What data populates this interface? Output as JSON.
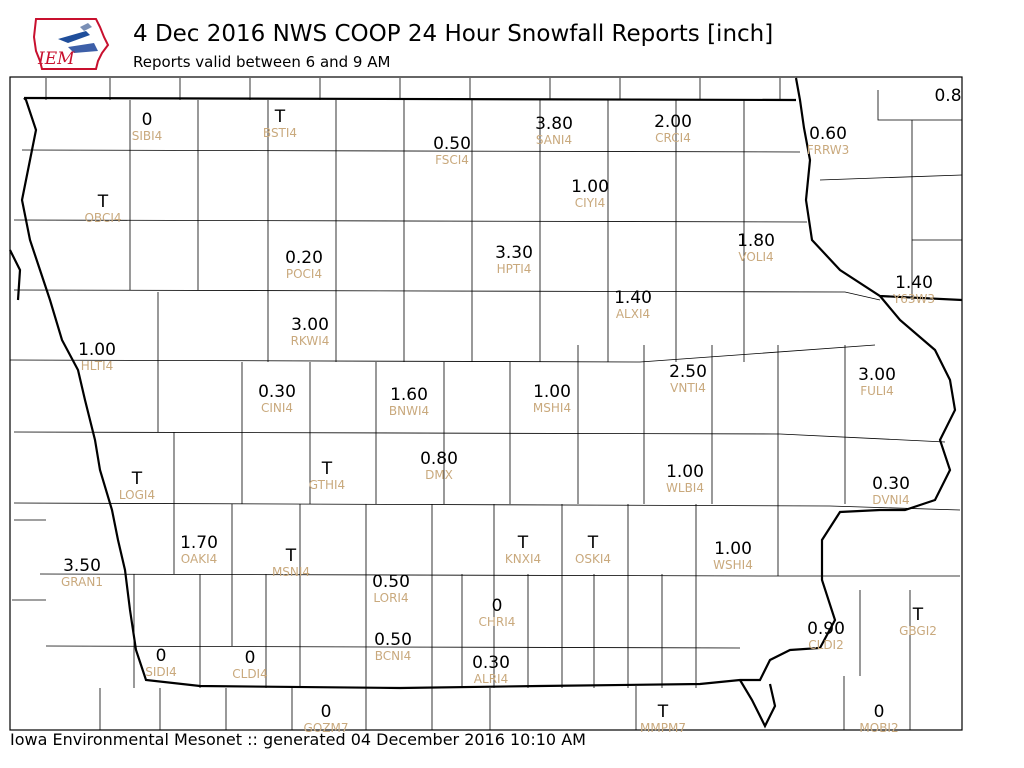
{
  "header": {
    "title": "4 Dec 2016 NWS COOP 24 Hour Snowfall Reports [inch]",
    "subtitle": "Reports valid between 6 and 9 AM",
    "logo_text": "IEM"
  },
  "footer": {
    "text": "Iowa Environmental Mesonet :: generated 04 December 2016 10:10 AM"
  },
  "colors": {
    "station_label": "#c9a97d",
    "value": "#000000",
    "logo_red": "#c8102e",
    "logo_blue": "#1f4e9b"
  },
  "reports": [
    {
      "value": "0",
      "station": "SIBI4"
    },
    {
      "value": "T",
      "station": "BSTI4"
    },
    {
      "value": "0.50",
      "station": "FSCI4"
    },
    {
      "value": "3.80",
      "station": "SANI4"
    },
    {
      "value": "2.00",
      "station": "CRCI4"
    },
    {
      "value": "0.60",
      "station": "FRRW3"
    },
    {
      "value": "0.8",
      "station": ""
    },
    {
      "value": "T",
      "station": "OBCI4"
    },
    {
      "value": "1.00",
      "station": "CIYI4"
    },
    {
      "value": "0.20",
      "station": "POCI4"
    },
    {
      "value": "3.30",
      "station": "HPTI4"
    },
    {
      "value": "1.80",
      "station": "VOLI4"
    },
    {
      "value": "1.40",
      "station": "Y63W3"
    },
    {
      "value": "1.40",
      "station": "ALXI4"
    },
    {
      "value": "3.00",
      "station": "RKWI4"
    },
    {
      "value": "1.00",
      "station": "HLTI4"
    },
    {
      "value": "2.50",
      "station": "VNTI4"
    },
    {
      "value": "0.30",
      "station": "CINI4"
    },
    {
      "value": "1.60",
      "station": "BNWI4"
    },
    {
      "value": "1.00",
      "station": "MSHI4"
    },
    {
      "value": "3.00",
      "station": "FULI4"
    },
    {
      "value": "0.80",
      "station": "DMX"
    },
    {
      "value": "T",
      "station": "LOGI4"
    },
    {
      "value": "T",
      "station": "GTHI4"
    },
    {
      "value": "1.00",
      "station": "WLBI4"
    },
    {
      "value": "0.30",
      "station": "DVNI4"
    },
    {
      "value": "1.70",
      "station": "OAKI4"
    },
    {
      "value": "T",
      "station": "MSNI4"
    },
    {
      "value": "T",
      "station": "KNXI4"
    },
    {
      "value": "T",
      "station": "OSKI4"
    },
    {
      "value": "1.00",
      "station": "WSHI4"
    },
    {
      "value": "3.50",
      "station": "GRAN1"
    },
    {
      "value": "0.50",
      "station": "LORI4"
    },
    {
      "value": "0",
      "station": "CHRI4"
    },
    {
      "value": "0.90",
      "station": "CLDI2"
    },
    {
      "value": "T",
      "station": "GBGI2"
    },
    {
      "value": "0",
      "station": "SIDI4"
    },
    {
      "value": "0",
      "station": "CLDI4"
    },
    {
      "value": "0.50",
      "station": "BCNI4"
    },
    {
      "value": "0.30",
      "station": "ALRI4"
    },
    {
      "value": "0",
      "station": "GOZM7"
    },
    {
      "value": "T",
      "station": "MMPM7"
    },
    {
      "value": "0",
      "station": "MOBI2"
    }
  ]
}
